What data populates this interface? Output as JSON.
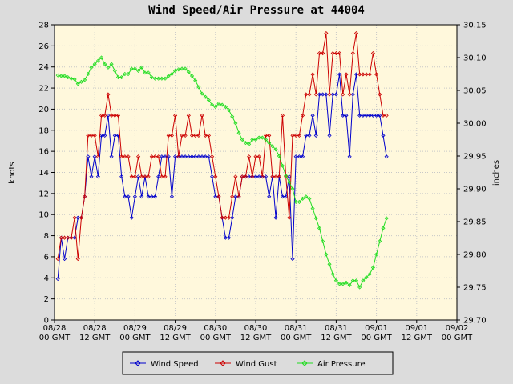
{
  "chart_data": {
    "type": "line",
    "title": "Wind Speed/Air Pressure at 44004",
    "ylabel": "knots",
    "y2label": "inches",
    "x": [
      1,
      2,
      3,
      4,
      5,
      6,
      7,
      8,
      9,
      10,
      11,
      12,
      13,
      14,
      15,
      16,
      17,
      18,
      19,
      20,
      21,
      22,
      23,
      24,
      25,
      26,
      27,
      28,
      29,
      30,
      31,
      32,
      33,
      34,
      35,
      36,
      37,
      38,
      39,
      40,
      41,
      42,
      43,
      44,
      45,
      46,
      47,
      48,
      49,
      50,
      51,
      52,
      53,
      54,
      55,
      56,
      57,
      58,
      59,
      60,
      61,
      62,
      63,
      64,
      65,
      66,
      67,
      68,
      69,
      70,
      71,
      72,
      73,
      74,
      75,
      76,
      77,
      78,
      79,
      80,
      81,
      82,
      83,
      84,
      85,
      86,
      87,
      88,
      89,
      90,
      91,
      92,
      93,
      94,
      95,
      96,
      97,
      98,
      99
    ],
    "xlim": [
      0,
      120
    ],
    "xticks": [
      {
        "value": 0,
        "label": "08/28\n00 GMT"
      },
      {
        "value": 12,
        "label": "08/28\n12 GMT"
      },
      {
        "value": 24,
        "label": "08/29\n00 GMT"
      },
      {
        "value": 36,
        "label": "08/29\n12 GMT"
      },
      {
        "value": 48,
        "label": "08/30\n00 GMT"
      },
      {
        "value": 60,
        "label": "08/30\n12 GMT"
      },
      {
        "value": 72,
        "label": "08/31\n00 GMT"
      },
      {
        "value": 84,
        "label": "08/31\n12 GMT"
      },
      {
        "value": 96,
        "label": "09/01\n00 GMT"
      },
      {
        "value": 108,
        "label": "09/01\n12 GMT"
      },
      {
        "value": 120,
        "label": "09/02\n00 GMT"
      }
    ],
    "ylim": [
      0,
      28
    ],
    "yticks": [
      0,
      2,
      4,
      6,
      8,
      10,
      12,
      14,
      16,
      18,
      20,
      22,
      24,
      26,
      28
    ],
    "y2lim": [
      29.7,
      30.15
    ],
    "y2ticks": [
      {
        "value": 29.7,
        "label": "29.70"
      },
      29.75,
      {
        "value": 29.8,
        "label": "29.80"
      },
      29.85,
      {
        "value": 29.9,
        "label": "29.90"
      },
      29.95,
      {
        "value": 30.0,
        "label": "30.00"
      },
      30.05,
      {
        "value": 30.1,
        "label": "30.10"
      },
      30.15
    ],
    "grid": true,
    "legend": "bottom",
    "series": [
      {
        "name": "Wind Speed",
        "color": "#0000cc",
        "values": [
          3.9,
          7.8,
          5.8,
          7.8,
          7.8,
          7.8,
          9.7,
          9.7,
          11.7,
          15.5,
          13.6,
          15.5,
          13.6,
          17.5,
          17.5,
          19.4,
          15.5,
          17.5,
          17.5,
          13.6,
          11.7,
          11.7,
          9.7,
          11.7,
          13.6,
          11.7,
          13.6,
          11.7,
          11.7,
          11.7,
          13.6,
          15.5,
          15.5,
          15.5,
          11.7,
          15.5,
          15.5,
          15.5,
          15.5,
          15.5,
          15.5,
          15.5,
          15.5,
          15.5,
          15.5,
          15.5,
          13.6,
          11.7,
          11.7,
          9.7,
          7.8,
          7.8,
          9.7,
          11.7,
          11.7,
          13.6,
          13.6,
          13.6,
          13.6,
          13.6,
          13.6,
          13.6,
          13.6,
          11.7,
          13.6,
          9.7,
          13.6,
          11.7,
          11.7,
          13.6,
          5.8,
          15.5,
          15.5,
          15.5,
          17.5,
          17.5,
          19.4,
          17.5,
          21.4,
          21.4,
          21.4,
          17.5,
          21.4,
          21.4,
          23.3,
          19.4,
          19.4,
          15.5,
          21.4,
          23.3,
          19.4,
          19.4,
          19.4,
          19.4,
          19.4,
          19.4,
          19.4,
          17.5,
          15.5
        ]
      },
      {
        "name": "Wind Gust",
        "color": "#cc0000",
        "values": [
          5.8,
          7.8,
          7.8,
          7.8,
          7.8,
          9.7,
          5.8,
          9.7,
          11.7,
          17.5,
          17.5,
          17.5,
          15.5,
          19.4,
          19.4,
          21.4,
          19.4,
          19.4,
          19.4,
          15.5,
          15.5,
          15.5,
          13.6,
          13.6,
          15.5,
          13.6,
          13.6,
          13.6,
          15.5,
          15.5,
          15.5,
          13.6,
          13.6,
          17.5,
          17.5,
          19.4,
          15.5,
          17.5,
          17.5,
          19.4,
          17.5,
          17.5,
          17.5,
          19.4,
          17.5,
          17.5,
          15.5,
          13.6,
          11.7,
          9.7,
          9.7,
          9.7,
          11.7,
          13.6,
          11.7,
          13.6,
          13.6,
          15.5,
          13.6,
          15.5,
          15.5,
          13.6,
          17.5,
          17.5,
          13.6,
          13.6,
          13.6,
          19.4,
          13.6,
          9.7,
          17.5,
          17.5,
          17.5,
          19.4,
          21.4,
          21.4,
          23.3,
          21.4,
          25.3,
          25.3,
          27.2,
          21.4,
          25.3,
          25.3,
          25.3,
          21.4,
          23.3,
          21.4,
          25.3,
          27.2,
          23.3,
          23.3,
          23.3,
          23.3,
          25.3,
          23.3,
          21.4,
          19.4,
          19.4
        ]
      },
      {
        "name": "Air Pressure",
        "color": "#22dd22",
        "axis": "y2",
        "values": [
          30.073,
          30.072,
          30.072,
          30.07,
          30.068,
          30.067,
          30.06,
          30.063,
          30.066,
          30.075,
          30.085,
          30.09,
          30.095,
          30.1,
          30.09,
          30.085,
          30.09,
          30.08,
          30.07,
          30.07,
          30.075,
          30.075,
          30.083,
          30.083,
          30.08,
          30.085,
          30.077,
          30.077,
          30.07,
          30.068,
          30.068,
          30.068,
          30.068,
          30.072,
          30.075,
          30.08,
          30.082,
          30.083,
          30.083,
          30.078,
          30.072,
          30.065,
          30.055,
          30.045,
          30.04,
          30.035,
          30.028,
          30.025,
          30.03,
          30.028,
          30.025,
          30.02,
          30.01,
          30.0,
          29.985,
          29.975,
          29.97,
          29.968,
          29.975,
          29.975,
          29.978,
          29.978,
          29.975,
          29.97,
          29.965,
          29.96,
          29.95,
          29.935,
          29.92,
          29.91,
          29.9,
          29.88,
          29.88,
          29.885,
          29.888,
          29.885,
          29.87,
          29.855,
          29.84,
          29.82,
          29.8,
          29.785,
          29.77,
          29.76,
          29.755,
          29.755,
          29.757,
          29.753,
          29.76,
          29.76,
          29.75,
          29.76,
          29.765,
          29.77,
          29.78,
          29.8,
          29.82,
          29.84,
          29.855
        ]
      }
    ]
  }
}
